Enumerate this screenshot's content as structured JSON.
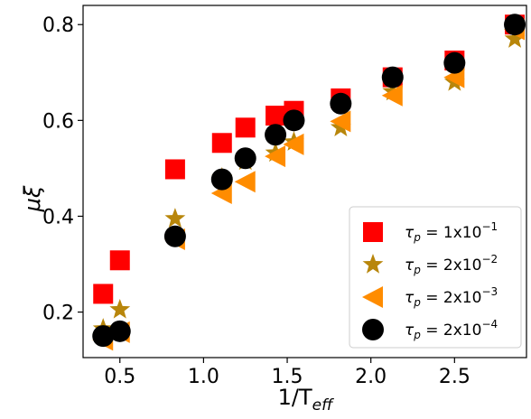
{
  "chart_data": {
    "type": "scatter",
    "xlabel_main": "1/T",
    "xlabel_sub": "eff",
    "ylabel": "μξ",
    "xlim": [
      0.28,
      2.93
    ],
    "ylim": [
      0.105,
      0.84
    ],
    "xticks": [
      0.5,
      1.0,
      1.5,
      2.0,
      2.5
    ],
    "xtick_labels": [
      "0.5",
      "1.0",
      "1.5",
      "2.0",
      "2.5"
    ],
    "yticks": [
      0.2,
      0.4,
      0.6,
      0.8
    ],
    "ytick_labels": [
      "0.2",
      "0.4",
      "0.6",
      "0.8"
    ],
    "grid": false,
    "legend_position": "bottom-right",
    "series": [
      {
        "name": "τp = 1x10−1",
        "legend_base": "τ",
        "legend_sub": "p",
        "legend_mid": " = 1x10",
        "legend_sup": "−1",
        "marker": "square",
        "color": "#ff0000",
        "points": [
          [
            0.4,
            0.238
          ],
          [
            0.5,
            0.308
          ],
          [
            0.83,
            0.498
          ],
          [
            1.11,
            0.553
          ],
          [
            1.25,
            0.585
          ],
          [
            1.43,
            0.61
          ],
          [
            1.54,
            0.62
          ],
          [
            1.82,
            0.646
          ],
          [
            2.13,
            0.69
          ],
          [
            2.5,
            0.725
          ],
          [
            2.86,
            0.8
          ]
        ]
      },
      {
        "name": "τp = 2x10−2",
        "legend_base": "τ",
        "legend_sub": "p",
        "legend_mid": " = 2x10",
        "legend_sup": "−2",
        "marker": "star",
        "color": "#b8860b",
        "points": [
          [
            0.4,
            0.165
          ],
          [
            0.5,
            0.205
          ],
          [
            0.83,
            0.395
          ],
          [
            1.11,
            0.48
          ],
          [
            1.25,
            0.515
          ],
          [
            1.43,
            0.532
          ],
          [
            1.54,
            0.555
          ],
          [
            1.82,
            0.585
          ],
          [
            2.13,
            0.66
          ],
          [
            2.5,
            0.68
          ],
          [
            2.86,
            0.77
          ]
        ]
      },
      {
        "name": "τp = 2x10−3",
        "legend_base": "τ",
        "legend_sub": "p",
        "legend_mid": " = 2x10",
        "legend_sup": "−3",
        "marker": "triangle-left",
        "color": "#ff8c00",
        "points": [
          [
            0.4,
            0.142
          ],
          [
            0.5,
            0.158
          ],
          [
            0.83,
            0.352
          ],
          [
            1.11,
            0.448
          ],
          [
            1.25,
            0.472
          ],
          [
            1.43,
            0.525
          ],
          [
            1.54,
            0.55
          ],
          [
            1.82,
            0.598
          ],
          [
            2.13,
            0.652
          ],
          [
            2.5,
            0.69
          ],
          [
            2.86,
            0.79
          ]
        ]
      },
      {
        "name": "τp = 2x10−4",
        "legend_base": "τ",
        "legend_sub": "p",
        "legend_mid": " = 2x10",
        "legend_sup": "−4",
        "marker": "circle",
        "color": "#000000",
        "points": [
          [
            0.4,
            0.15
          ],
          [
            0.5,
            0.16
          ],
          [
            0.83,
            0.358
          ],
          [
            1.11,
            0.477
          ],
          [
            1.25,
            0.521
          ],
          [
            1.43,
            0.57
          ],
          [
            1.54,
            0.6
          ],
          [
            1.82,
            0.635
          ],
          [
            2.13,
            0.69
          ],
          [
            2.5,
            0.72
          ],
          [
            2.86,
            0.8
          ]
        ]
      }
    ]
  }
}
